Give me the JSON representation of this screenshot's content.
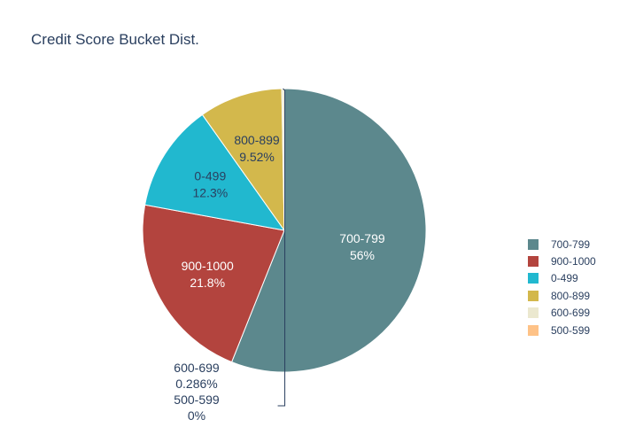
{
  "chart_data": {
    "type": "pie",
    "title": "Credit Score Bucket Dist.",
    "slices": [
      {
        "label": "700-799",
        "percent_text": "56%",
        "value": 56.0,
        "color": "#5c888d",
        "text_color": "#ffffff"
      },
      {
        "label": "900-1000",
        "percent_text": "21.8%",
        "value": 21.8,
        "color": "#b3443e",
        "text_color": "#ffffff"
      },
      {
        "label": "0-499",
        "percent_text": "12.3%",
        "value": 12.3,
        "color": "#21b8cf",
        "text_color": "#2a3f5f"
      },
      {
        "label": "800-899",
        "percent_text": "9.52%",
        "value": 9.52,
        "color": "#d3b84c",
        "text_color": "#2a3f5f"
      },
      {
        "label": "600-699",
        "percent_text": "0.286%",
        "value": 0.286,
        "color": "#ebe8cf",
        "text_color": "#2a3f5f"
      },
      {
        "label": "500-599",
        "percent_text": "0%",
        "value": 0,
        "color": "#fec287",
        "text_color": "#2a3f5f"
      }
    ],
    "legend_position": "right"
  }
}
